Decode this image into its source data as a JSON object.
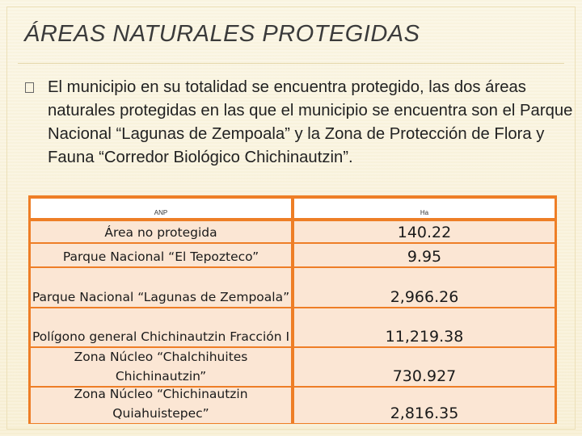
{
  "title": "ÁREAS NATURALES PROTEGIDAS",
  "bullet": {
    "icon": "square-bullet-icon",
    "text": "El municipio en su totalidad se encuentra protegido, las dos áreas naturales protegidas en las que el municipio se encuentra son el Parque Nacional “Lagunas de Zempoala” y la Zona de Protección de Flora y Fauna “Corredor Biológico Chichinautzin”."
  },
  "table": {
    "headers": [
      "ANP",
      "Ha"
    ],
    "rows": [
      {
        "name": "Área no protegida",
        "ha": "140.22"
      },
      {
        "name": "Parque Nacional “El Tepozteco”",
        "ha": "9.95"
      },
      {
        "name": "Parque Nacional “Lagunas de Zempoala”",
        "ha": "2,966.26"
      },
      {
        "name": "Polígono general Chichinautzin Fracción I",
        "ha": "11,219.38"
      },
      {
        "name": "Zona Núcleo “Chalchihuites Chichinautzin”",
        "ha": "730.927"
      },
      {
        "name": "Zona Núcleo “Chichinautzin Quiahuistepec”",
        "ha": "2,816.35"
      }
    ],
    "colors": {
      "header_border": "#ee7e26",
      "row_fill": "#fbe6d4"
    }
  }
}
